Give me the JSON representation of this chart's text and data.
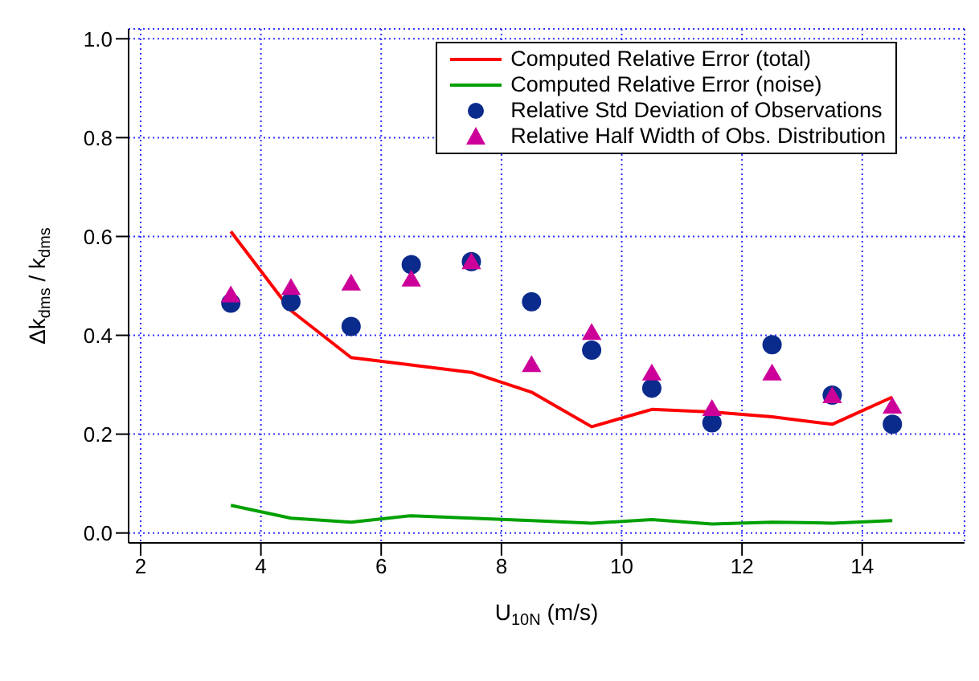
{
  "chart_data": {
    "type": "line",
    "xlabel": "U$_{10N}$ (m/s)",
    "ylabel": "Δk$_{dms}$ / k$_{dms}$",
    "x": [
      3.5,
      4.5,
      5.5,
      6.5,
      7.5,
      8.5,
      9.5,
      10.5,
      11.5,
      12.5,
      13.5,
      14.5
    ],
    "series": [
      {
        "name": "Computed Relative Error (total)",
        "color": "#ff0000",
        "marker": "none",
        "values": [
          0.61,
          0.45,
          0.355,
          0.34,
          0.325,
          0.285,
          0.215,
          0.25,
          0.245,
          0.235,
          0.22,
          0.275
        ]
      },
      {
        "name": "Computed Relative Error (noise)",
        "color": "#00a000",
        "marker": "none",
        "values": [
          0.056,
          0.03,
          0.022,
          0.035,
          0.03,
          0.025,
          0.02,
          0.027,
          0.018,
          0.022,
          0.02,
          0.025
        ]
      },
      {
        "name": "Relative Std Deviation of Observations",
        "type": "scatter",
        "color": "#0a2a8c",
        "marker": "circle",
        "values": [
          0.465,
          0.468,
          0.418,
          0.543,
          0.549,
          0.468,
          0.37,
          0.293,
          0.223,
          0.381,
          0.279,
          0.22
        ]
      },
      {
        "name": "Relative Half Width of Obs. Distribution",
        "type": "scatter",
        "color": "#cc0099",
        "marker": "triangle",
        "values": [
          0.478,
          0.493,
          0.502,
          0.51,
          0.545,
          0.337,
          0.402,
          0.32,
          0.248,
          0.32,
          0.274,
          0.253
        ]
      }
    ],
    "xlim": [
      1.8,
      15.7
    ],
    "xticks": [
      2,
      4,
      6,
      8,
      10,
      12,
      14
    ],
    "ylim": [
      -0.02,
      1.02
    ],
    "yticks": [
      {
        "value": 0,
        "label": "0.0"
      },
      {
        "value": 0.2,
        "label": "0.2"
      },
      {
        "value": 0.4,
        "label": "0.4"
      },
      {
        "value": 0.6,
        "label": "0.6"
      },
      {
        "value": 0.8,
        "label": "0.8"
      },
      {
        "value": 1,
        "label": "1.0"
      }
    ],
    "grid": true,
    "legend": "top right"
  }
}
